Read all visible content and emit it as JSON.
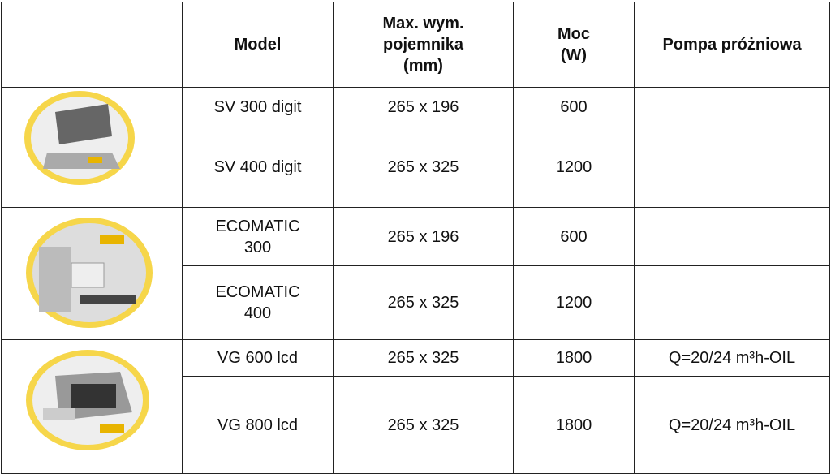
{
  "table": {
    "header": [
      [
        "Model"
      ],
      [
        "Max. wym.",
        "pojemnika",
        "(mm)"
      ],
      [
        "Moc",
        "(W)"
      ],
      [
        "Pompa próżniowa"
      ]
    ],
    "rows": [
      {
        "model": [
          "SV 300 digit"
        ],
        "size": "265 x 196",
        "power": "600"
      },
      {
        "model": [
          "SV 400 digit"
        ],
        "size": "265 x 325",
        "power": "1200"
      },
      {
        "model": [
          "ECOMATIC",
          "300"
        ],
        "size": "265 x 196",
        "power": "600"
      },
      {
        "model": [
          "ECOMATIC",
          "400"
        ],
        "size": "265 x 325",
        "power": "1200"
      },
      {
        "model": [
          "VG 600 lcd"
        ],
        "size": "265 x 325",
        "power": "1800",
        "pump": "Q=20/24 m³h-OIL"
      },
      {
        "model": [
          "VG 800 lcd"
        ],
        "size": "265 x 325",
        "power": "1800",
        "pump": "Q=20/24 m³h-OIL"
      }
    ]
  }
}
